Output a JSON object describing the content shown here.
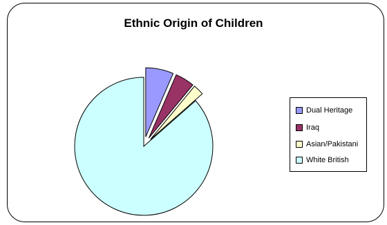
{
  "chart_data": {
    "type": "pie",
    "title": "Ethnic Origin of Children",
    "categories": [
      "Dual Heritage",
      "Iraq",
      "Asian/Pakistani",
      "White British"
    ],
    "values": [
      6.5,
      4.5,
      2.5,
      86.5
    ],
    "unit": "%",
    "colors": [
      "#9999ff",
      "#993366",
      "#ffffcc",
      "#ccffff"
    ],
    "exploded": true,
    "legend_position": "right"
  }
}
